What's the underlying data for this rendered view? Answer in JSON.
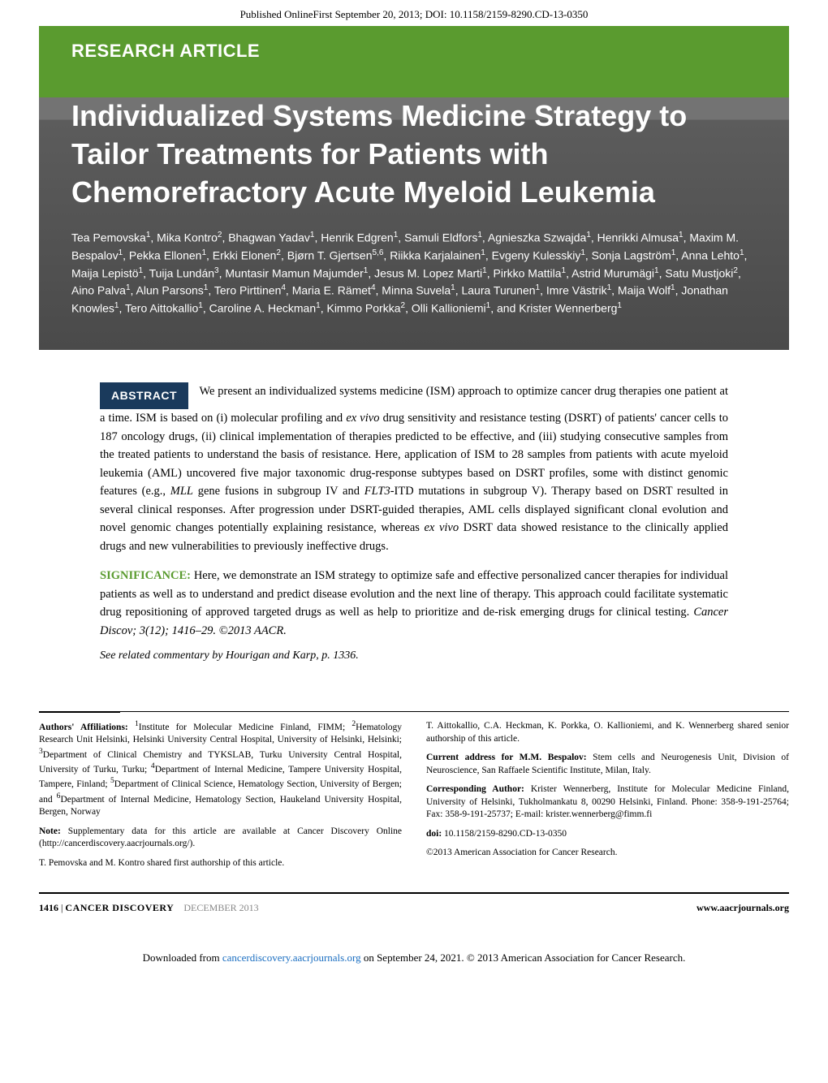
{
  "top_header": "Published OnlineFirst September 20, 2013; DOI: 10.1158/2159-8290.CD-13-0350",
  "article_type": "RESEARCH ARTICLE",
  "title": "Individualized Systems Medicine Strategy to Tailor Treatments for Patients with Chemorefractory Acute Myeloid Leukemia",
  "authors_html": "Tea Pemovska<sup>1</sup>, Mika Kontro<sup>2</sup>, Bhagwan Yadav<sup>1</sup>, Henrik Edgren<sup>1</sup>, Samuli Eldfors<sup>1</sup>, Agnieszka Szwajda<sup>1</sup>, Henrikki Almusa<sup>1</sup>, Maxim M. Bespalov<sup>1</sup>, Pekka Ellonen<sup>1</sup>, Erkki Elonen<sup>2</sup>, Bjørn T. Gjertsen<sup>5,6</sup>, Riikka Karjalainen<sup>1</sup>, Evgeny Kulesskiy<sup>1</sup>, Sonja Lagström<sup>1</sup>, Anna Lehto<sup>1</sup>, Maija Lepistö<sup>1</sup>, Tuija Lundán<sup>3</sup>, Muntasir Mamun Majumder<sup>1</sup>, Jesus M. Lopez Marti<sup>1</sup>, Pirkko Mattila<sup>1</sup>, Astrid Murumägi<sup>1</sup>, Satu Mustjoki<sup>2</sup>, Aino Palva<sup>1</sup>, Alun Parsons<sup>1</sup>, Tero Pirttinen<sup>4</sup>, Maria E. Rämet<sup>4</sup>, Minna Suvela<sup>1</sup>, Laura Turunen<sup>1</sup>, Imre Västrik<sup>1</sup>, Maija Wolf<sup>1</sup>, Jonathan Knowles<sup>1</sup>, Tero Aittokallio<sup>1</sup>, Caroline A. Heckman<sup>1</sup>, Kimmo Porkka<sup>2</sup>, Olli Kallioniemi<sup>1</sup>, and Krister Wennerberg<sup>1</sup>",
  "abstract_label": "ABSTRACT",
  "abstract_p1_html": "We present an individualized systems medicine (ISM) approach to optimize cancer drug therapies one patient at a time. ISM is based on (i) molecular profiling and <span class=\"ital\">ex vivo</span> drug sensitivity and resistance testing (DSRT) of patients' cancer cells to 187 oncology drugs, (ii) clinical implementation of therapies predicted to be effective, and (iii) studying consecutive samples from the treated patients to understand the basis of resistance. Here, application of ISM to 28 samples from patients with acute myeloid leukemia (AML) uncovered five major taxonomic drug-response subtypes based on DSRT profiles, some with distinct genomic features (e.g., <span class=\"ital\">MLL</span> gene fusions in subgroup IV and <span class=\"ital\">FLT3</span>-ITD mutations in subgroup V). Therapy based on DSRT resulted in several clinical responses. After progression under DSRT-guided therapies, AML cells displayed significant clonal evolution and novel genomic changes potentially explaining resistance, whereas <span class=\"ital\">ex vivo</span> DSRT data showed resistance to the clinically applied drugs and new vulnerabilities to previously ineffective drugs.",
  "significance_label": "SIGNIFICANCE:",
  "significance_text_html": " Here, we demonstrate an ISM strategy to optimize safe and effective personalized cancer therapies for individual patients as well as to understand and predict disease evolution and the next line of therapy. This approach could facilitate systematic drug repositioning of approved targeted drugs as well as help to prioritize and de-risk emerging drugs for clinical testing. <span class=\"ital\">Cancer Discov; 3(12); 1416–29. ©2013 AACR.</span>",
  "related_commentary": "See related commentary by Hourigan and Karp, p. 1336.",
  "left_col": {
    "affiliations_label": "Authors' Affiliations:",
    "affiliations_text_html": " <sup>1</sup>Institute for Molecular Medicine Finland, FIMM; <sup>2</sup>Hematology Research Unit Helsinki, Helsinki University Central Hospital, University of Helsinki, Helsinki; <sup>3</sup>Department of Clinical Chemistry and TYKSLAB, Turku University Central Hospital, University of Turku, Turku; <sup>4</sup>Department of Internal Medicine, Tampere University Hospital, Tampere, Finland; <sup>5</sup>Department of Clinical Science, Hematology Section, University of Bergen; and <sup>6</sup>Department of Internal Medicine, Hematology Section, Haukeland University Hospital, Bergen, Norway",
    "note_label": "Note:",
    "note_text": " Supplementary data for this article are available at Cancer Discovery Online (http://cancerdiscovery.aacrjournals.org/).",
    "shared_first": "T. Pemovska and M. Kontro shared first authorship of this article."
  },
  "right_col": {
    "shared_senior": "T. Aittokallio, C.A. Heckman, K. Porkka, O. Kallioniemi, and K. Wennerberg shared senior authorship of this article.",
    "current_addr_label": "Current address for M.M. Bespalov:",
    "current_addr_text": " Stem cells and Neurogenesis Unit, Division of Neuroscience, San Raffaele Scientific Institute, Milan, Italy.",
    "corresponding_label": "Corresponding Author:",
    "corresponding_text": " Krister Wennerberg, Institute for Molecular Medicine Finland, University of Helsinki, Tukholmankatu 8, 00290 Helsinki, Finland. Phone: 358-9-191-25764; Fax: 358-9-191-25737; E-mail: krister.wennerberg@fimm.fi",
    "doi_label": "doi:",
    "doi_text": " 10.1158/2159-8290.CD-13-0350",
    "copyright": "©2013 American Association for Cancer Research."
  },
  "page_footer": {
    "page_num": "1416",
    "journal": "CANCER DISCOVERY",
    "issue_date": "DECEMBER  2013",
    "url": "www.aacrjournals.org"
  },
  "download_footer": {
    "prefix": "Downloaded from ",
    "link": "cancerdiscovery.aacrjournals.org",
    "suffix": " on September 24, 2021. © 2013 American Association for Cancer Research."
  }
}
